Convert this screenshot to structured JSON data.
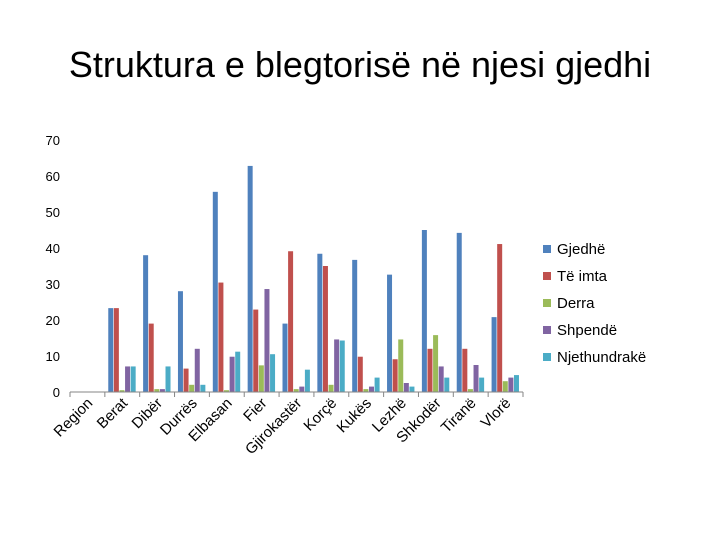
{
  "slide": {
    "title": "Struktura e blegtorisë në njesi gjedhi"
  },
  "chart_data": {
    "type": "bar",
    "title": "",
    "xlabel": "",
    "ylabel": "",
    "ylim": [
      0,
      70
    ],
    "yticks": [
      0,
      10,
      20,
      30,
      40,
      50,
      60,
      70
    ],
    "grid": false,
    "legend_position": "right",
    "categories": [
      "Region",
      "Berat",
      "Dibër",
      "Durrës",
      "Elbasan",
      "Fier",
      "Gjirokastër",
      "Korçë",
      "Kukës",
      "Lezhë",
      "Shkodër",
      "Tiranë",
      "Vlorë"
    ],
    "series": [
      {
        "name": "Gjedhë",
        "color": "#4F81BD",
        "values": [
          0,
          23.3,
          38.0,
          28.0,
          55.6,
          62.8,
          19.0,
          38.4,
          36.7,
          32.6,
          45.0,
          44.2,
          20.8
        ]
      },
      {
        "name": "Të imta",
        "color": "#C0504D",
        "values": [
          0,
          23.3,
          19.0,
          6.5,
          30.4,
          22.9,
          39.1,
          35.0,
          9.8,
          9.1,
          12.0,
          12.0,
          41.1
        ]
      },
      {
        "name": "Derra",
        "color": "#9BBB59",
        "values": [
          0,
          0.5,
          0.8,
          2.0,
          0.5,
          7.4,
          0.8,
          2.0,
          0.8,
          14.6,
          15.8,
          0.8,
          3.0
        ]
      },
      {
        "name": "Shpendë",
        "color": "#8064A2",
        "values": [
          0,
          7.1,
          0.8,
          12.0,
          9.8,
          28.6,
          1.5,
          14.6,
          1.5,
          2.5,
          7.1,
          7.5,
          4.0
        ]
      },
      {
        "name": "Njethundrakë",
        "color": "#4BACC6",
        "values": [
          0,
          7.1,
          7.1,
          2.0,
          11.2,
          10.5,
          6.2,
          14.3,
          4.0,
          1.5,
          4.0,
          4.0,
          4.7
        ]
      }
    ]
  }
}
